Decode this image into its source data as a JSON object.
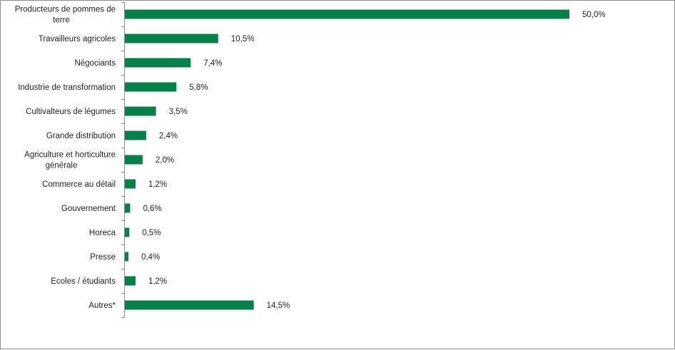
{
  "chart_data": {
    "type": "bar",
    "orientation": "horizontal",
    "categories": [
      "Producteurs de pommes de terre",
      "Travailleurs agricoles",
      "Négociants",
      "Industrie de transformation",
      "Cultivalteurs de légumes",
      "Grande distribution",
      "Agriculture et horticulture générale",
      "Commerce au détail",
      "Gouvernement",
      "Horeca",
      "Presse",
      "Ecoles / étudiants",
      "Autres*"
    ],
    "values": [
      50.0,
      10.5,
      7.4,
      5.8,
      3.5,
      2.4,
      2.0,
      1.2,
      0.6,
      0.5,
      0.4,
      1.2,
      14.5
    ],
    "value_labels": [
      "50,0%",
      "10,5%",
      "7,4%",
      "5,8%",
      "3,5%",
      "2,4%",
      "2,0%",
      "1,2%",
      "0,6%",
      "0,5%",
      "0,4%",
      "1,2%",
      "14,5%"
    ],
    "category_label_lines": [
      [
        "Producteurs de pommes de",
        "terre"
      ],
      [
        "Travailleurs agricoles"
      ],
      [
        "Négociants"
      ],
      [
        "Industrie de transformation"
      ],
      [
        "Cultivalteurs de légumes"
      ],
      [
        "Grande distribution"
      ],
      [
        "Agriculture et horticulture",
        "générale"
      ],
      [
        "Commerce au détail"
      ],
      [
        "Gouvernement"
      ],
      [
        "Horeca"
      ],
      [
        "Presse"
      ],
      [
        "Ecoles / étudiants"
      ],
      [
        "Autres*"
      ]
    ],
    "xlim": [
      0,
      50
    ],
    "bar_color": "#078049",
    "grid": false,
    "legend": "none",
    "title": "",
    "xlabel": "",
    "ylabel": ""
  }
}
